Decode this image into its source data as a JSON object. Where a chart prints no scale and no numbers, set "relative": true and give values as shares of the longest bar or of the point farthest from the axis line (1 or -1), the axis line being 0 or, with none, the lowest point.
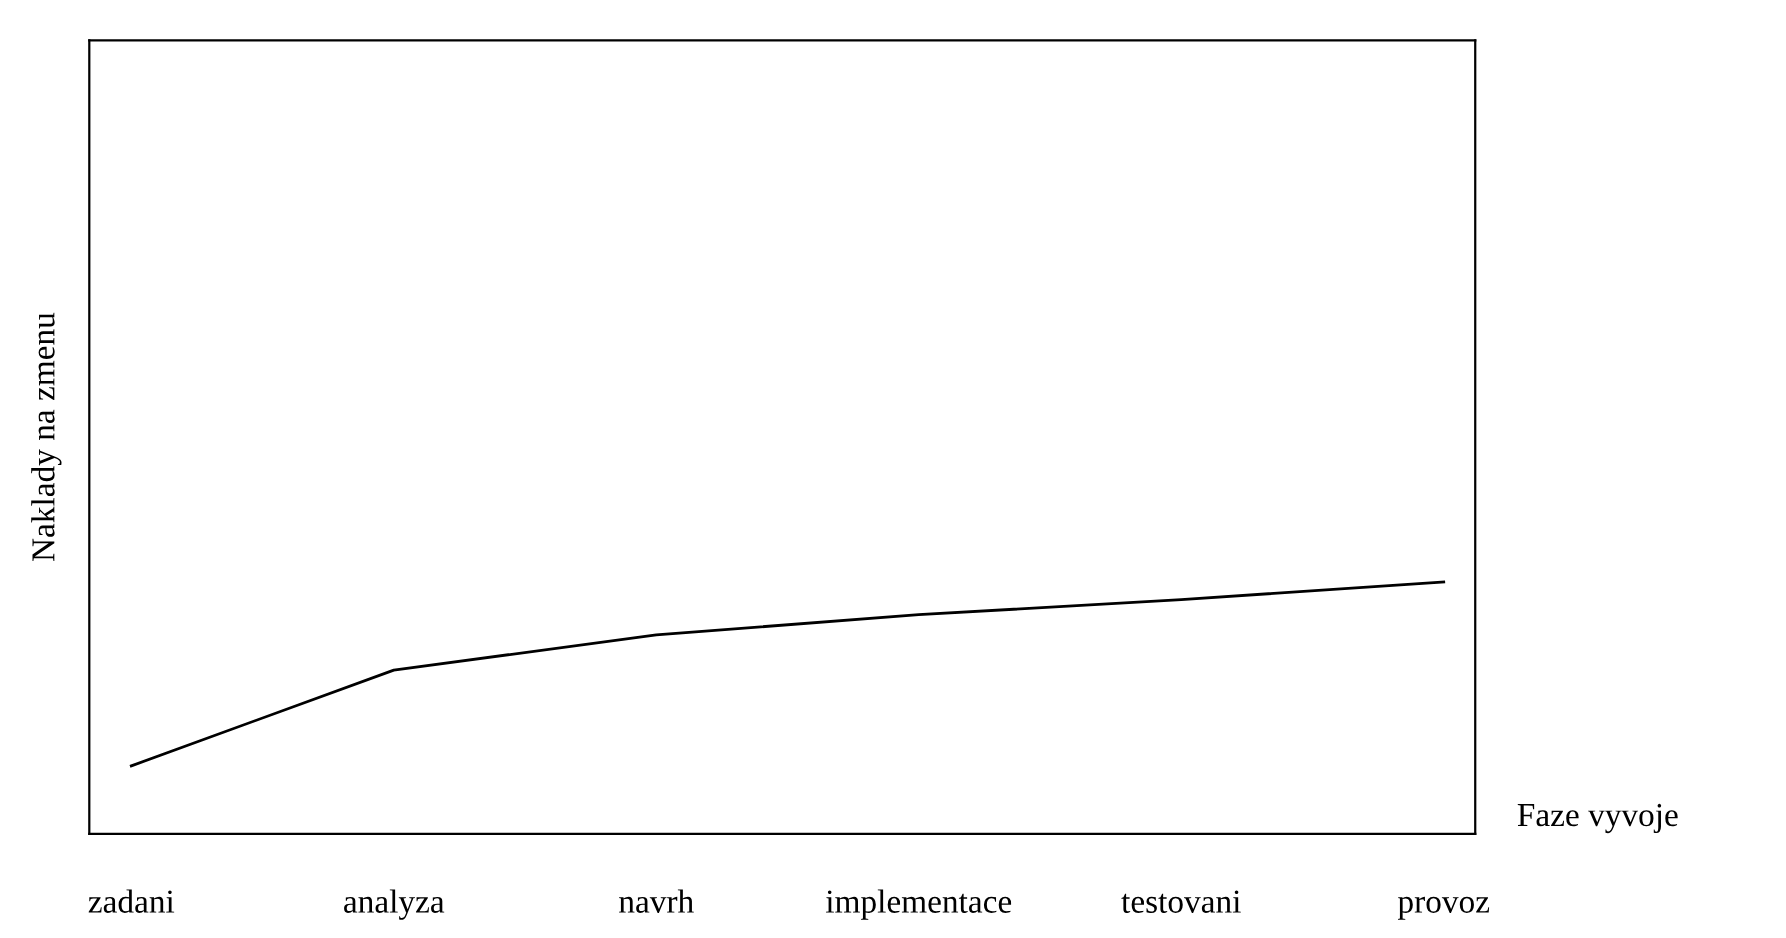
{
  "chart_data": {
    "type": "line",
    "relative": true,
    "xlabel": "Faze vyvoje",
    "ylabel": "Naklady na zmenu",
    "categories": [
      "zadani",
      "analyza",
      "navrh",
      "implementace",
      "testovani",
      "provoz"
    ],
    "series": [
      {
        "color": "#000000",
        "values": [
          0.27,
          0.65,
          0.79,
          0.87,
          0.93,
          1.0
        ]
      }
    ],
    "grid": false,
    "legend": false,
    "marker": "none",
    "line_style": "solid"
  }
}
